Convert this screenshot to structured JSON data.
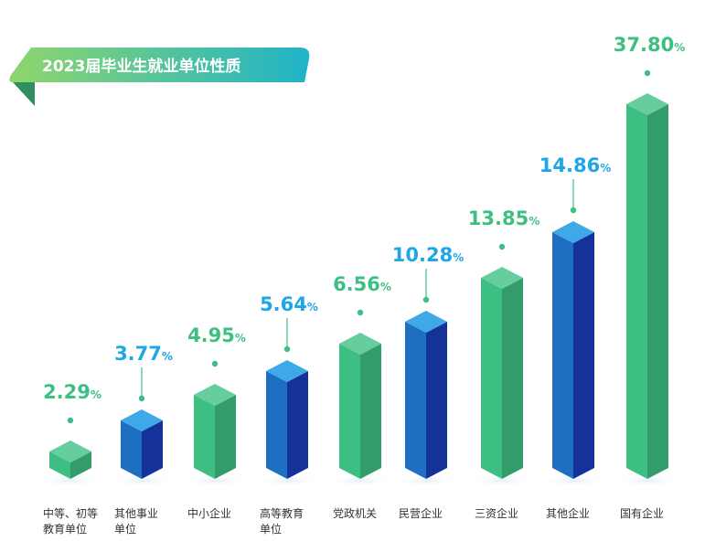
{
  "chart_data": {
    "type": "bar",
    "title": "2023届毕业生就业单位性质",
    "categories": [
      "中等、初等教育单位",
      "其他事业单位",
      "中小企业",
      "高等教育单位",
      "党政机关",
      "民营企业",
      "三资企业",
      "其他企业",
      "国有企业"
    ],
    "category_lines": [
      [
        "中等、初等",
        "教育单位"
      ],
      [
        "其他事业",
        "单位"
      ],
      [
        "中小企业"
      ],
      [
        "高等教育",
        "单位"
      ],
      [
        "党政机关"
      ],
      [
        "民营企业"
      ],
      [
        "三资企业"
      ],
      [
        "其他企业"
      ],
      [
        "国有企业"
      ]
    ],
    "values": [
      2.29,
      3.77,
      4.95,
      5.64,
      6.56,
      10.28,
      13.85,
      14.86,
      37.8
    ],
    "value_labels": [
      "2.29",
      "3.77",
      "4.95",
      "5.64",
      "6.56",
      "10.28",
      "13.85",
      "14.86",
      "37.80"
    ],
    "unit": "%",
    "bar_styles": [
      "green",
      "blue",
      "green",
      "blue",
      "green",
      "blue",
      "green",
      "blue",
      "green"
    ],
    "colors": {
      "green": "#3dbf83",
      "blue": "#1e6fc2",
      "blue_dark": "#14329a",
      "blue_top": "#3ea9e6",
      "label_green": "#3dbf83",
      "label_blue": "#1fa6e6",
      "title_gradient_start": "#8fd66b",
      "title_gradient_end": "#1fb3c8"
    }
  }
}
